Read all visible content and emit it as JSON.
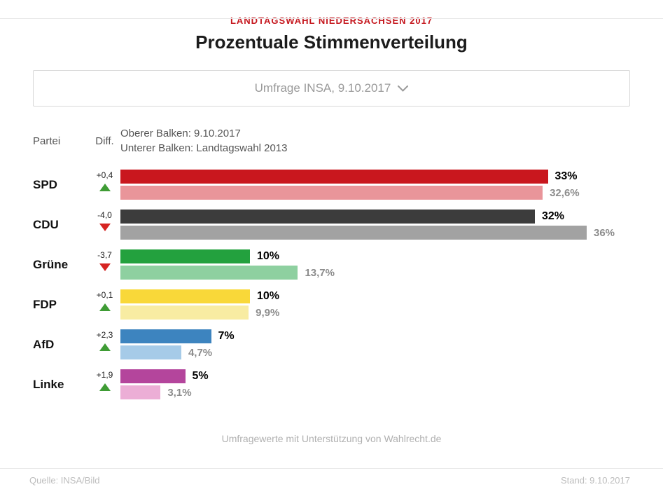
{
  "header": {
    "kicker": "LANDTAGSWAHL NIEDERSACHSEN 2017",
    "title": "Prozentuale Stimmenverteilung",
    "dropdown_label": "Umfrage INSA, 9.10.2017"
  },
  "legend": {
    "partei": "Partei",
    "diff": "Diff.",
    "line1": "Oberer Balken: 9.10.2017",
    "line2": "Unterer Balken: Landtagswahl 2013"
  },
  "colors": {
    "accent_red": "#c5161d",
    "positive": "#3f9c35",
    "negative": "#d62422"
  },
  "chart_data": {
    "type": "bar",
    "orientation": "horizontal",
    "title": "Prozentuale Stimmenverteilung",
    "subtitle": "Landtagswahl Niedersachsen 2017",
    "categories": [
      "SPD",
      "CDU",
      "Grüne",
      "FDP",
      "AfD",
      "Linke"
    ],
    "series": [
      {
        "name": "Oberer Balken: Umfrage INSA 9.10.2017",
        "values": [
          33,
          32,
          10,
          10,
          7,
          5
        ],
        "labels": [
          "33%",
          "32%",
          "10%",
          "10%",
          "7%",
          "5%"
        ]
      },
      {
        "name": "Unterer Balken: Landtagswahl 2013",
        "values": [
          32.6,
          36,
          13.7,
          9.9,
          4.7,
          3.1
        ],
        "labels": [
          "32,6%",
          "36%",
          "13,7%",
          "9,9%",
          "4,7%",
          "3,1%"
        ]
      }
    ],
    "diff": [
      {
        "label": "+0,4",
        "direction": "up"
      },
      {
        "label": "-4,0",
        "direction": "down"
      },
      {
        "label": "-3,7",
        "direction": "down"
      },
      {
        "label": "+0,1",
        "direction": "up"
      },
      {
        "label": "+2,3",
        "direction": "up"
      },
      {
        "label": "+1,9",
        "direction": "up"
      }
    ],
    "xlim": [
      0,
      38
    ],
    "grid": false,
    "legend": [
      "Oberer Balken: 9.10.2017",
      "Unterer Balken: Landtagswahl 2013"
    ],
    "legend_position": "top"
  },
  "rows": [
    {
      "party": "SPD",
      "diff": "+0,4",
      "dir": "up",
      "top": {
        "value": 33,
        "label": "33%",
        "color": "#c9171e"
      },
      "bottom": {
        "value": 32.6,
        "label": "32,6%",
        "color": "#e9959a"
      }
    },
    {
      "party": "CDU",
      "diff": "-4,0",
      "dir": "down",
      "top": {
        "value": 32,
        "label": "32%",
        "color": "#3c3c3c"
      },
      "bottom": {
        "value": 36,
        "label": "36%",
        "color": "#a2a2a2"
      }
    },
    {
      "party": "Grüne",
      "diff": "-3,7",
      "dir": "down",
      "top": {
        "value": 10,
        "label": "10%",
        "color": "#23a13e"
      },
      "bottom": {
        "value": 13.7,
        "label": "13,7%",
        "color": "#8ed0a0"
      }
    },
    {
      "party": "FDP",
      "diff": "+0,1",
      "dir": "up",
      "top": {
        "value": 10,
        "label": "10%",
        "color": "#f9d839"
      },
      "bottom": {
        "value": 9.9,
        "label": "9,9%",
        "color": "#f8eca2"
      }
    },
    {
      "party": "AfD",
      "diff": "+2,3",
      "dir": "up",
      "top": {
        "value": 7,
        "label": "7%",
        "color": "#3d84bf"
      },
      "bottom": {
        "value": 4.7,
        "label": "4,7%",
        "color": "#a6cbe8"
      }
    },
    {
      "party": "Linke",
      "diff": "+1,9",
      "dir": "up",
      "top": {
        "value": 5,
        "label": "5%",
        "color": "#b4459c"
      },
      "bottom": {
        "value": 3.1,
        "label": "3,1%",
        "color": "#ecaed6"
      }
    }
  ],
  "footer": {
    "note": "Umfragewerte mit Unterstützung von Wahlrecht.de",
    "source": "Quelle: INSA/Bild",
    "stand": "Stand: 9.10.2017"
  }
}
